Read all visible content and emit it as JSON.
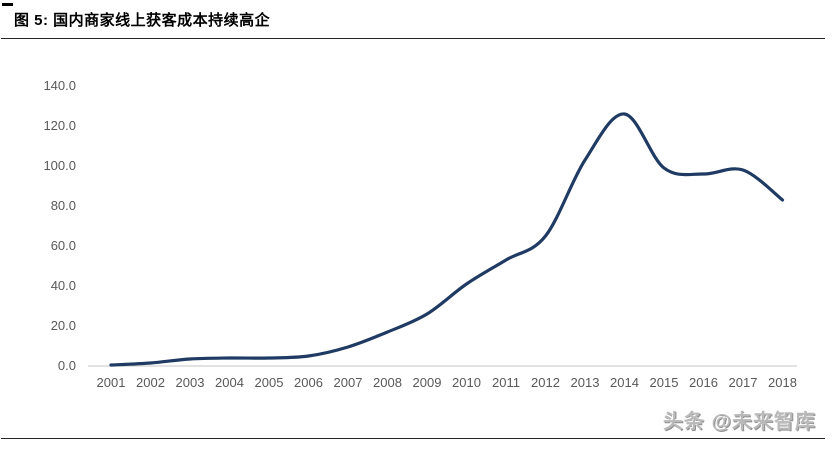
{
  "figure": {
    "title": "图 5: 国内商家线上获客成本持续高企",
    "watermark": "头条 @未来智库"
  },
  "chart_data": {
    "type": "line",
    "title": "图 5: 国内商家线上获客成本持续高企",
    "categories": [
      "2001",
      "2002",
      "2003",
      "2004",
      "2005",
      "2006",
      "2007",
      "2008",
      "2009",
      "2010",
      "2011",
      "2012",
      "2013",
      "2014",
      "2015",
      "2016",
      "2017",
      "2018"
    ],
    "series": [
      {
        "name": "线上获客成本",
        "values": [
          0.5,
          1.5,
          3.5,
          4.0,
          4.0,
          5.0,
          9.5,
          17.0,
          26.0,
          41.0,
          53.0,
          65.0,
          103.0,
          126.0,
          99.0,
          96.0,
          98.0,
          83.0
        ]
      }
    ],
    "xlabel": "",
    "ylabel": "",
    "ylim": [
      0,
      140
    ],
    "ytick_interval": 20,
    "yticks": [
      "0.0",
      "20.0",
      "40.0",
      "60.0",
      "80.0",
      "100.0",
      "120.0",
      "140.0"
    ],
    "grid": false,
    "legend_position": "none",
    "smooth": true,
    "colors": {
      "line": "#1f3a63",
      "axis_line": "#d9d9d9",
      "tick_text": "#595959",
      "rule": "#262626"
    }
  }
}
